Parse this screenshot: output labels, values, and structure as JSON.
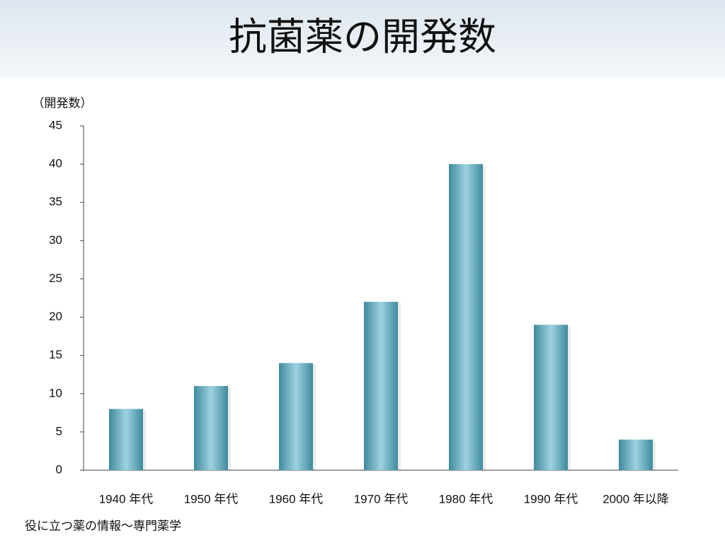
{
  "chart_data": {
    "type": "bar",
    "title": "抗菌薬の開発数",
    "y_label": "（開発数）",
    "source": "役に立つ薬の情報～専門薬学",
    "categories": [
      "1940 年代",
      "1950 年代",
      "1960 年代",
      "1970 年代",
      "1980 年代",
      "1990 年代",
      "2000 年以降"
    ],
    "values": [
      8,
      11,
      14,
      22,
      40,
      19,
      4
    ],
    "color": "#3f8a9e",
    "ylim": [
      0,
      45
    ],
    "yticks": [
      0,
      5,
      10,
      15,
      20,
      25,
      30,
      35,
      40,
      45
    ],
    "grid": false
  }
}
